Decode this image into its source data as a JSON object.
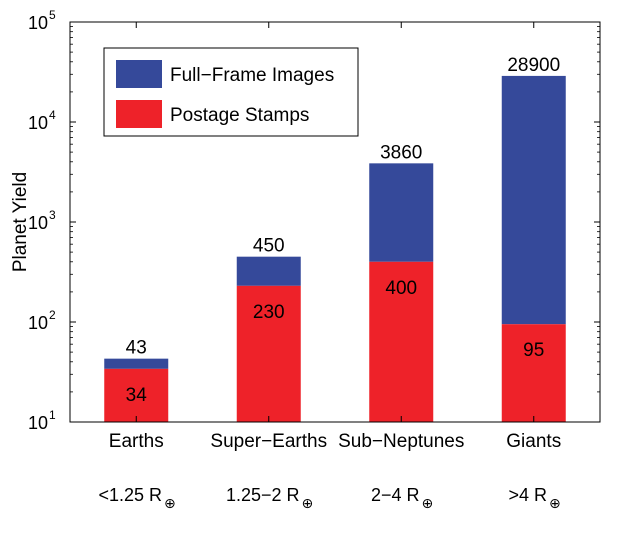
{
  "chart_data": {
    "type": "bar",
    "stacked": true,
    "scale": "log",
    "ylabel": "Planet Yield",
    "xlabel": "",
    "ylim": [
      10,
      100000
    ],
    "yticks": [
      {
        "value": 10,
        "base": "10",
        "exp": "1"
      },
      {
        "value": 100,
        "base": "10",
        "exp": "2"
      },
      {
        "value": 1000,
        "base": "10",
        "exp": "3"
      },
      {
        "value": 10000,
        "base": "10",
        "exp": "4"
      },
      {
        "value": 100000,
        "base": "10",
        "exp": "5"
      }
    ],
    "categories": [
      "Earths",
      "Super−Earths",
      "Sub−Neptunes",
      "Giants"
    ],
    "size_ranges": [
      {
        "text": "<1.25 R",
        "symbol": "⊕"
      },
      {
        "text": "1.25−2 R",
        "symbol": "⊕"
      },
      {
        "text": "2−4 R",
        "symbol": "⊕"
      },
      {
        "text": ">4 R",
        "symbol": "⊕"
      }
    ],
    "series": [
      {
        "name": "Postage Stamps",
        "color": "#ee2229",
        "values": [
          34,
          230,
          400,
          95
        ],
        "labels": [
          "34",
          "230",
          "400",
          "95"
        ]
      },
      {
        "name": "Full−Frame Images",
        "color": "#35499a",
        "values": [
          43,
          450,
          3860,
          28900
        ],
        "labels": [
          "43",
          "450",
          "3860",
          "28900"
        ]
      }
    ],
    "legend": {
      "position": "top-left",
      "order": [
        "Full−Frame Images",
        "Postage Stamps"
      ]
    },
    "grid": false
  }
}
